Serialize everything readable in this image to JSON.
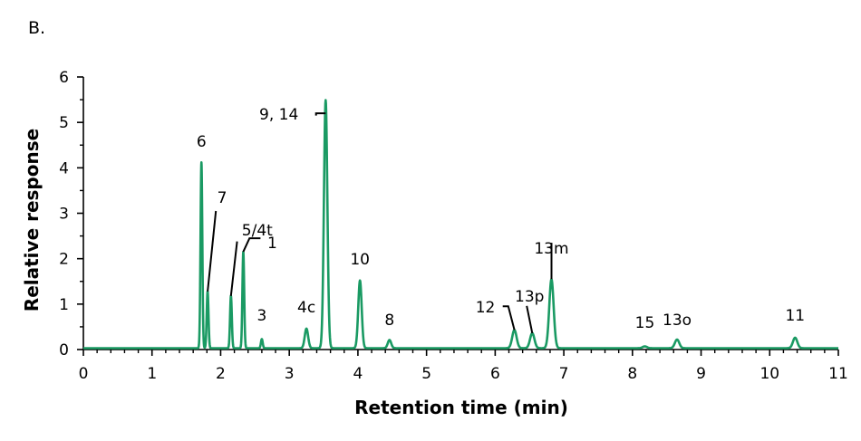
{
  "panel_label": "B.",
  "chart_data": {
    "type": "line",
    "title": "",
    "xlabel": "Retention time (min)",
    "ylabel": "Relative response",
    "xlim": [
      0,
      11
    ],
    "ylim": [
      0,
      6
    ],
    "xticks": [
      0,
      1,
      2,
      3,
      4,
      5,
      6,
      7,
      8,
      9,
      10,
      11
    ],
    "yticks": [
      0,
      1,
      2,
      3,
      4,
      5,
      6
    ],
    "grid": false,
    "line_color": "#1a9a63",
    "baseline": 0.03,
    "peaks": [
      {
        "label": "6",
        "x": 1.72,
        "y": 4.12
      },
      {
        "label": "7",
        "x": 1.81,
        "y": 1.28
      },
      {
        "label": "5/4t",
        "x": 2.15,
        "y": 1.18
      },
      {
        "label": "1",
        "x": 2.33,
        "y": 2.15
      },
      {
        "label": "3",
        "x": 2.6,
        "y": 0.23
      },
      {
        "label": "4c",
        "x": 3.25,
        "y": 0.46
      },
      {
        "label": "9, 14",
        "x": 3.53,
        "y": 5.49
      },
      {
        "label": "10",
        "x": 4.03,
        "y": 1.52
      },
      {
        "label": "8",
        "x": 4.46,
        "y": 0.21
      },
      {
        "label": "12",
        "x": 6.28,
        "y": 0.43
      },
      {
        "label": "13p",
        "x": 6.54,
        "y": 0.36
      },
      {
        "label": "13m",
        "x": 6.82,
        "y": 1.55
      },
      {
        "label": "15",
        "x": 8.18,
        "y": 0.07
      },
      {
        "label": "13o",
        "x": 8.65,
        "y": 0.22
      },
      {
        "label": "11",
        "x": 10.37,
        "y": 0.26
      }
    ]
  }
}
